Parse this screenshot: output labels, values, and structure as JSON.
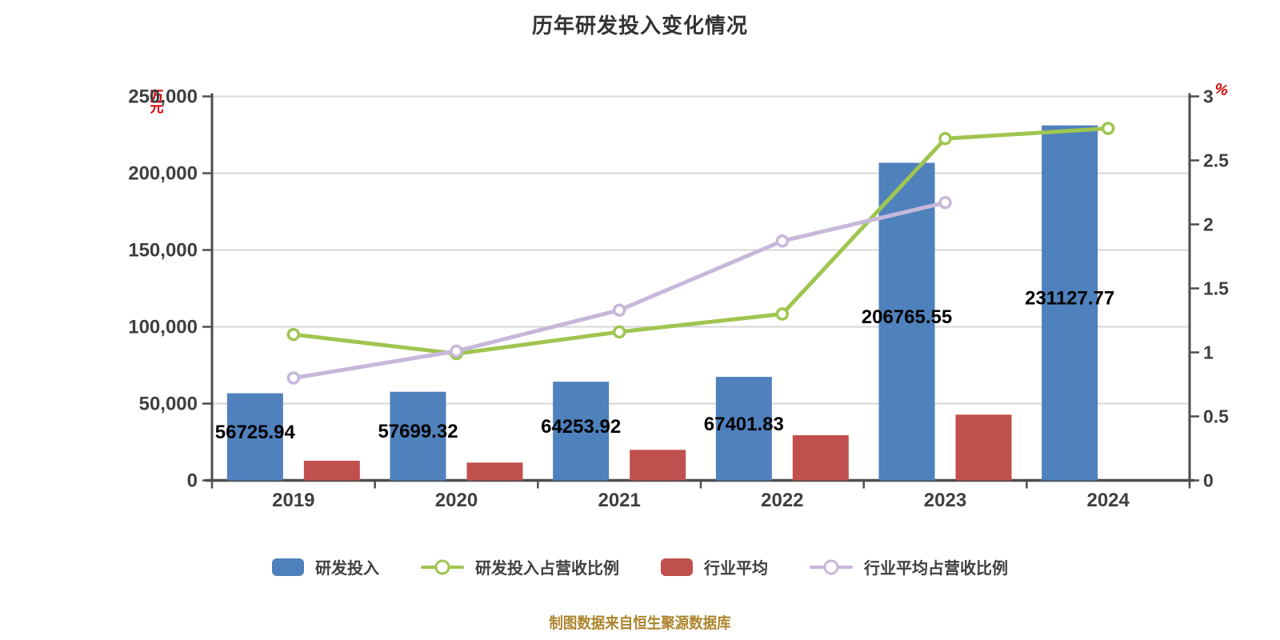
{
  "title": "历年研发投入变化情况",
  "footer": "制图数据来自恒生聚源数据库",
  "left_axis_unit": "万元",
  "right_axis_unit": "%",
  "colors": {
    "rd_bar": "#4f81bd",
    "industry_bar": "#c0504d",
    "rd_ratio_line": "#9fc54f",
    "industry_ratio_line": "#c6b8d9",
    "grid": "#d6d6d6",
    "axis": "#4d4d4d",
    "tick_label": "#3f3f3f",
    "data_label": "#000000",
    "unit_label": "#d40000",
    "footer_text": "#ad842c",
    "marker_fill": "#ffffff"
  },
  "legend": [
    {
      "label": "研发投入",
      "type": "bar",
      "colorKey": "rd_bar"
    },
    {
      "label": "研发投入占营收比例",
      "type": "line",
      "colorKey": "rd_ratio_line"
    },
    {
      "label": "行业平均",
      "type": "bar",
      "colorKey": "industry_bar"
    },
    {
      "label": "行业平均占营收比例",
      "type": "line",
      "colorKey": "industry_ratio_line"
    }
  ],
  "chart_data": {
    "type": "combo-bar-line",
    "categories": [
      "2019",
      "2020",
      "2021",
      "2022",
      "2023",
      "2024"
    ],
    "series": [
      {
        "name": "研发投入",
        "type": "bar",
        "axis": "left",
        "colorKey": "rd_bar",
        "values": [
          56725.94,
          57699.32,
          64253.92,
          67401.83,
          206765.55,
          231127.77
        ],
        "labels": [
          "56725.94",
          "57699.32",
          "64253.92",
          "67401.83",
          "206765.55",
          "231127.77"
        ]
      },
      {
        "name": "行业平均",
        "type": "bar",
        "axis": "left",
        "colorKey": "industry_bar",
        "values": [
          12800,
          11600,
          19900,
          29400,
          42800,
          null
        ],
        "labels": [
          null,
          null,
          null,
          null,
          null,
          null
        ]
      },
      {
        "name": "研发投入占营收比例",
        "type": "line",
        "axis": "right",
        "colorKey": "rd_ratio_line",
        "values": [
          1.14,
          0.99,
          1.16,
          1.3,
          2.67,
          2.75
        ]
      },
      {
        "name": "行业平均占营收比例",
        "type": "line",
        "axis": "right",
        "colorKey": "industry_ratio_line",
        "values": [
          0.8,
          1.01,
          1.33,
          1.87,
          2.17,
          null
        ]
      }
    ],
    "left_axis": {
      "min": 0,
      "max": 250000,
      "step": 50000,
      "unit": "万元",
      "tick_labels": [
        "0",
        "50,000",
        "100,000",
        "150,000",
        "200,000",
        "250,000"
      ]
    },
    "right_axis": {
      "min": 0,
      "max": 3,
      "step": 0.5,
      "unit": "%",
      "tick_labels": [
        "0",
        "0.5",
        "1",
        "1.5",
        "2",
        "2.5",
        "3"
      ]
    },
    "grid": true,
    "legend_position": "bottom"
  }
}
